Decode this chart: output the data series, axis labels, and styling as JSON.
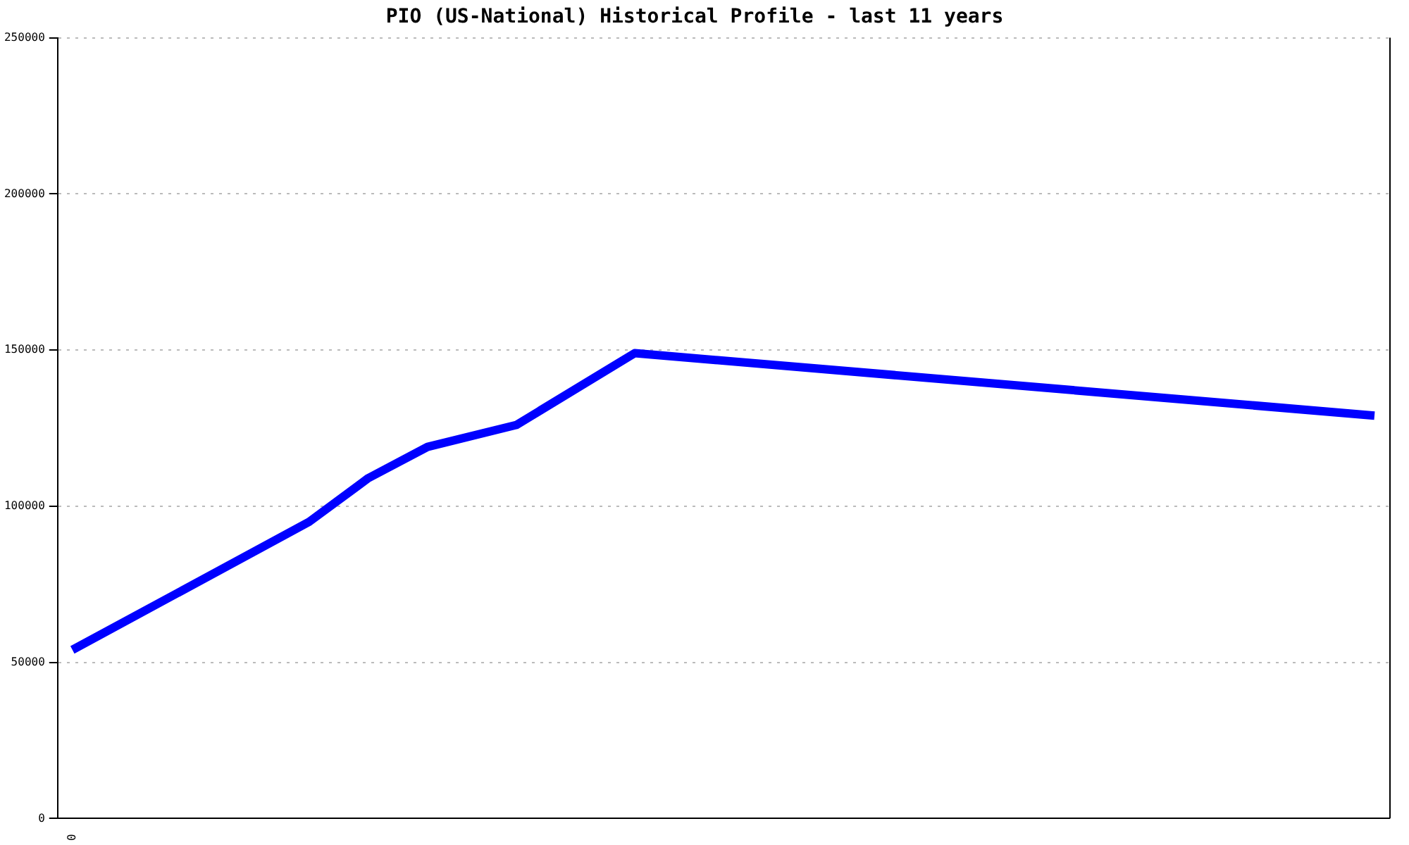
{
  "chart_data": {
    "type": "line",
    "title": "PIO (US-National) Historical Profile - last 11 years",
    "categories": [
      "0",
      null,
      null,
      null,
      null,
      null,
      null,
      null,
      null,
      null,
      null,
      null,
      null,
      null,
      null,
      null,
      null,
      null,
      null,
      null,
      null,
      null,
      null,
      null,
      null,
      null,
      null,
      null,
      null,
      null,
      null,
      null,
      null,
      null,
      null,
      null,
      null,
      null,
      null,
      null,
      null,
      null,
      null,
      null,
      null
    ],
    "series": [
      {
        "color": "#0000ff",
        "values": [
          54000,
          null,
          null,
          null,
          null,
          null,
          null,
          null,
          95000,
          null,
          109000,
          null,
          119000,
          null,
          null,
          126000,
          null,
          null,
          null,
          149000,
          null,
          null,
          null,
          null,
          null,
          null,
          null,
          null,
          null,
          null,
          null,
          null,
          null,
          null,
          null,
          null,
          null,
          null,
          null,
          null,
          null,
          null,
          null,
          null,
          129000
        ]
      }
    ],
    "ylim": [
      0,
      250000
    ],
    "yticks": [
      0,
      50000,
      100000,
      150000,
      200000,
      250000
    ],
    "grid": "y",
    "legend": false,
    "marker": "none",
    "line_style": "solid"
  }
}
